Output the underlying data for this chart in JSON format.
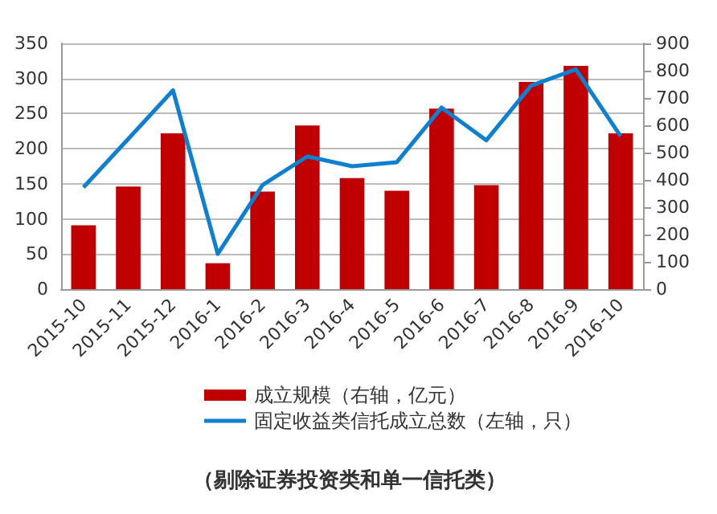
{
  "chart_data": {
    "type": "bar",
    "categories": [
      "2015-10",
      "2015-11",
      "2015-12",
      "2016-1",
      "2016-2",
      "2016-3",
      "2016-4",
      "2016-5",
      "2016-6",
      "2016-7",
      "2016-8",
      "2016-9",
      "2016-10"
    ],
    "series": [
      {
        "name": "成立规模（右轴，亿元）",
        "color": "#c00000",
        "values": [
          91,
          146,
          222,
          37,
          139,
          233,
          158,
          140,
          257,
          148,
          295,
          318,
          222
        ]
      },
      {
        "name": "固定收益类信托成立总数（左轴，只）",
        "type": "line",
        "axis": "y2",
        "color": "#0f7fd0",
        "values": [
          373,
          550,
          728,
          129,
          381,
          486,
          450,
          465,
          665,
          545,
          745,
          805,
          560
        ]
      }
    ],
    "ylim": [
      0,
      350
    ],
    "yticks": [
      0,
      50,
      100,
      150,
      200,
      250,
      300,
      350
    ],
    "y2lim": [
      0,
      900
    ],
    "y2ticks": [
      0,
      100,
      200,
      300,
      400,
      500,
      600,
      700,
      800,
      900
    ],
    "grid": "y",
    "legend": "bottom",
    "marker": "none",
    "annotations": [
      "（剔除证券投资类和单一信托类）"
    ]
  }
}
